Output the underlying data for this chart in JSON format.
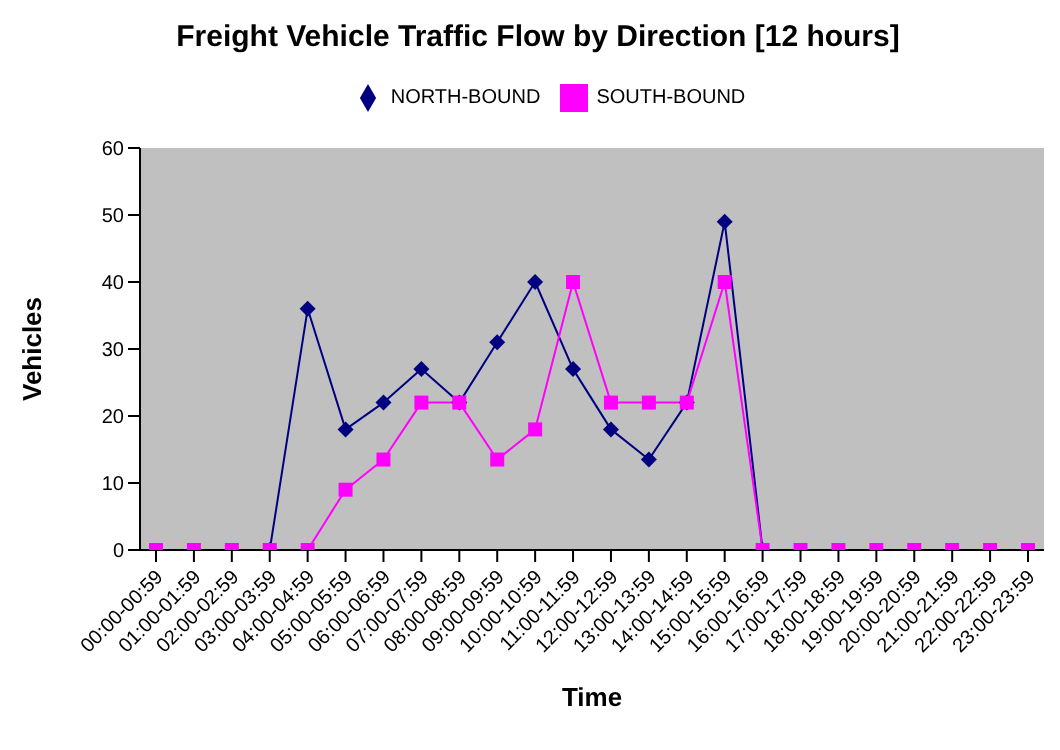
{
  "chart_data": {
    "type": "line",
    "title": "Freight Vehicle Traffic Flow by Direction [12 hours]",
    "xlabel": "Time",
    "ylabel": "Vehicles",
    "categories": [
      "00:00-00:59",
      "01:00-01:59",
      "02:00-02:59",
      "03:00-03:59",
      "04:00-04:59",
      "05:00-05:59",
      "06:00-06:59",
      "07:00-07:59",
      "08:00-08:59",
      "09:00-09:59",
      "10:00-10:59",
      "11:00-11:59",
      "12:00-12:59",
      "13:00-13:59",
      "14:00-14:59",
      "15:00-15:59",
      "16:00-16:59",
      "17:00-17:59",
      "18:00-18:59",
      "19:00-19:59",
      "20:00-20:59",
      "21:00-21:59",
      "22:00-22:59",
      "23:00-23:59"
    ],
    "series": [
      {
        "name": "NORTH-BOUND",
        "color": "#000080",
        "marker": "diamond",
        "values": [
          null,
          null,
          null,
          0,
          36,
          18,
          22,
          27,
          22,
          31,
          40,
          27,
          18,
          13.5,
          22,
          49,
          0,
          null,
          null,
          null,
          null,
          null,
          null,
          null
        ]
      },
      {
        "name": "SOUTH-BOUND",
        "color": "#ff00ff",
        "marker": "square",
        "values": [
          0,
          0,
          0,
          0,
          0,
          9,
          13.5,
          22,
          22,
          13.5,
          18,
          40,
          22,
          22,
          22,
          40,
          0,
          0,
          0,
          0,
          0,
          0,
          0,
          0
        ]
      }
    ],
    "ylim": [
      0,
      60
    ],
    "yticks": [
      0,
      10,
      20,
      30,
      40,
      50,
      60
    ],
    "grid": false,
    "legend": "top",
    "line_style": "solid"
  }
}
